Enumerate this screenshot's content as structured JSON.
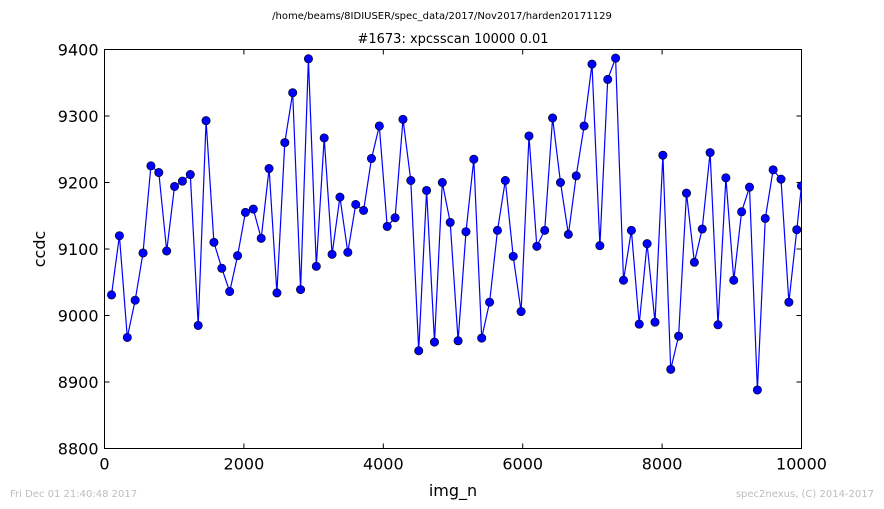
{
  "chart_data": {
    "type": "line",
    "suptitle": "/home/beams/8IDIUSER/spec_data/2017/Nov2017/harden20171129",
    "title": "#1673: xpcsscan 10000 0.01",
    "xlabel": "img_n",
    "ylabel": "ccdc",
    "xlim": [
      0,
      10000
    ],
    "ylim": [
      8800,
      9400
    ],
    "xticks": [
      0,
      2000,
      4000,
      6000,
      8000,
      10000
    ],
    "yticks": [
      8800,
      8900,
      9000,
      9100,
      9200,
      9300,
      9400
    ],
    "grid": false,
    "line_color": "#0000ff",
    "x": [
      101,
      214,
      327,
      440,
      553,
      666,
      779,
      892,
      1005,
      1118,
      1231,
      1344,
      1457,
      1570,
      1683,
      1796,
      1909,
      2022,
      2135,
      2248,
      2361,
      2474,
      2587,
      2700,
      2813,
      2926,
      3039,
      3152,
      3265,
      3378,
      3491,
      3604,
      3717,
      3830,
      3943,
      4056,
      4169,
      4282,
      4395,
      4508,
      4621,
      4734,
      4847,
      4960,
      5073,
      5186,
      5299,
      5412,
      5525,
      5638,
      5751,
      5864,
      5977,
      6090,
      6203,
      6316,
      6429,
      6542,
      6655,
      6768,
      6881,
      6994,
      7107,
      7220,
      7333,
      7446,
      7559,
      7672,
      7785,
      7898,
      8011,
      8124,
      8237,
      8350,
      8463,
      8576,
      8689,
      8802,
      8915,
      9028,
      9141,
      9254,
      9367,
      9480,
      9593,
      9706,
      9819,
      9932,
      10000
    ],
    "values": [
      9031,
      9120,
      8967,
      9023,
      9094,
      9225,
      9215,
      9097,
      9194,
      9202,
      9212,
      8985,
      9293,
      9110,
      9071,
      9036,
      9090,
      9155,
      9160,
      9116,
      9221,
      9034,
      9260,
      9335,
      9039,
      9386,
      9074,
      9267,
      9092,
      9178,
      9095,
      9167,
      9158,
      9236,
      9285,
      9134,
      9147,
      9295,
      9203,
      8947,
      9188,
      8960,
      9200,
      9140,
      8962,
      9126,
      9235,
      8966,
      9020,
      9128,
      9203,
      9089,
      9006,
      9270,
      9104,
      9128,
      9297,
      9200,
      9122,
      9210,
      9285,
      9378,
      9105,
      9355,
      9387,
      9053,
      9128,
      8987,
      9108,
      8990,
      9241,
      8919,
      8969,
      9184,
      9080,
      9130,
      9245,
      8986,
      9207,
      9053,
      9156,
      9193,
      8888,
      9146,
      9219,
      9205,
      9020,
      9129,
      9195
    ]
  },
  "footer": {
    "left": "Fri Dec 01 21:40:48 2017",
    "right": "spec2nexus, (C) 2014-2017"
  }
}
